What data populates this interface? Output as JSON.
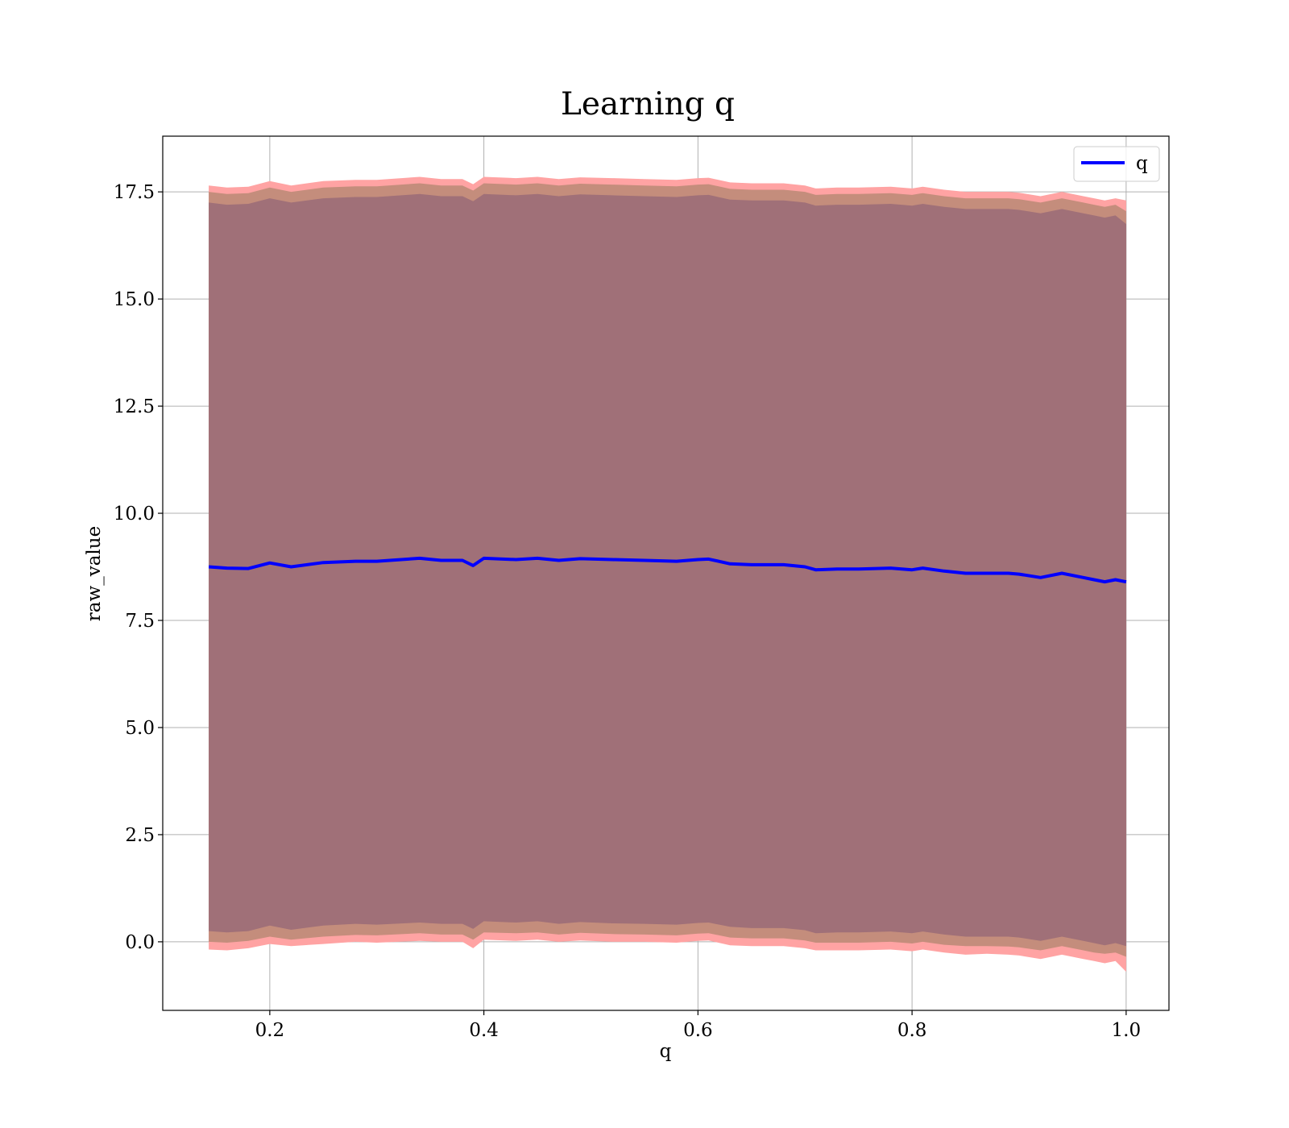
{
  "chart_data": {
    "type": "area",
    "title": "Learning q",
    "xlabel": "q",
    "ylabel": "raw_value",
    "xlim": [
      0.1,
      1.04
    ],
    "ylim": [
      -1.6,
      18.8
    ],
    "x_ticks": [
      0.2,
      0.4,
      0.6,
      0.8,
      1.0
    ],
    "x_tick_labels": [
      "0.2",
      "0.4",
      "0.6",
      "0.8",
      "1.0"
    ],
    "y_ticks": [
      0.0,
      2.5,
      5.0,
      7.5,
      10.0,
      12.5,
      15.0,
      17.5
    ],
    "y_tick_labels": [
      "0.0",
      "2.5",
      "5.0",
      "7.5",
      "10.0",
      "12.5",
      "15.0",
      "17.5"
    ],
    "grid": true,
    "legend": {
      "position": "top-right",
      "entries": [
        "q"
      ]
    },
    "colors": {
      "line": "#0000ff",
      "outer_band": "#ffa3a3",
      "middle_band": "#c48d7c",
      "inner_band": "#a07078"
    },
    "x": [
      0.143,
      0.16,
      0.18,
      0.2,
      0.22,
      0.25,
      0.28,
      0.3,
      0.34,
      0.36,
      0.38,
      0.39,
      0.4,
      0.43,
      0.45,
      0.47,
      0.49,
      0.52,
      0.55,
      0.58,
      0.6,
      0.61,
      0.63,
      0.65,
      0.68,
      0.7,
      0.71,
      0.73,
      0.75,
      0.78,
      0.8,
      0.81,
      0.83,
      0.85,
      0.87,
      0.89,
      0.9,
      0.92,
      0.94,
      0.96,
      0.97,
      0.98,
      0.99,
      1.0
    ],
    "series": [
      {
        "name": "q",
        "values": [
          8.75,
          8.72,
          8.71,
          8.84,
          8.75,
          8.85,
          8.88,
          8.88,
          8.95,
          8.9,
          8.9,
          8.78,
          8.95,
          8.92,
          8.95,
          8.9,
          8.94,
          8.92,
          8.9,
          8.88,
          8.92,
          8.93,
          8.82,
          8.8,
          8.8,
          8.75,
          8.68,
          8.7,
          8.7,
          8.72,
          8.68,
          8.72,
          8.65,
          8.6,
          8.6,
          8.6,
          8.58,
          8.5,
          8.6,
          8.5,
          8.45,
          8.4,
          8.45,
          8.4
        ]
      }
    ],
    "bands": [
      {
        "lower": [
          -0.18,
          -0.2,
          -0.15,
          -0.05,
          -0.1,
          -0.05,
          0.0,
          -0.02,
          0.02,
          0.0,
          0.0,
          -0.15,
          0.05,
          0.02,
          0.05,
          0.0,
          0.03,
          0.0,
          0.0,
          -0.02,
          0.02,
          0.03,
          -0.08,
          -0.1,
          -0.1,
          -0.15,
          -0.2,
          -0.2,
          -0.2,
          -0.18,
          -0.22,
          -0.18,
          -0.25,
          -0.3,
          -0.28,
          -0.3,
          -0.32,
          -0.4,
          -0.3,
          -0.4,
          -0.45,
          -0.5,
          -0.45,
          -0.7
        ],
        "upper": [
          17.65,
          17.6,
          17.62,
          17.75,
          17.65,
          17.75,
          17.78,
          17.78,
          17.85,
          17.8,
          17.8,
          17.68,
          17.85,
          17.82,
          17.85,
          17.8,
          17.84,
          17.82,
          17.8,
          17.78,
          17.82,
          17.83,
          17.72,
          17.7,
          17.7,
          17.65,
          17.58,
          17.6,
          17.6,
          17.62,
          17.58,
          17.62,
          17.55,
          17.5,
          17.5,
          17.5,
          17.48,
          17.4,
          17.5,
          17.4,
          17.35,
          17.3,
          17.35,
          17.3
        ]
      },
      {
        "lower": [
          0.0,
          -0.02,
          0.02,
          0.12,
          0.05,
          0.12,
          0.16,
          0.15,
          0.2,
          0.17,
          0.17,
          0.05,
          0.22,
          0.2,
          0.22,
          0.17,
          0.21,
          0.18,
          0.17,
          0.15,
          0.19,
          0.2,
          0.1,
          0.08,
          0.08,
          0.03,
          -0.02,
          -0.02,
          -0.02,
          0.0,
          -0.04,
          0.0,
          -0.07,
          -0.1,
          -0.1,
          -0.11,
          -0.13,
          -0.2,
          -0.1,
          -0.2,
          -0.25,
          -0.28,
          -0.25,
          -0.35
        ],
        "upper": [
          17.5,
          17.45,
          17.47,
          17.6,
          17.5,
          17.6,
          17.63,
          17.63,
          17.7,
          17.65,
          17.65,
          17.53,
          17.7,
          17.67,
          17.7,
          17.65,
          17.69,
          17.67,
          17.65,
          17.63,
          17.67,
          17.68,
          17.57,
          17.55,
          17.55,
          17.5,
          17.43,
          17.45,
          17.45,
          17.47,
          17.43,
          17.47,
          17.4,
          17.35,
          17.35,
          17.35,
          17.33,
          17.25,
          17.35,
          17.25,
          17.2,
          17.15,
          17.2,
          17.05
        ]
      },
      {
        "lower": [
          0.25,
          0.22,
          0.25,
          0.38,
          0.28,
          0.38,
          0.42,
          0.4,
          0.45,
          0.42,
          0.42,
          0.3,
          0.48,
          0.45,
          0.48,
          0.42,
          0.46,
          0.43,
          0.42,
          0.4,
          0.44,
          0.45,
          0.35,
          0.32,
          0.32,
          0.27,
          0.2,
          0.22,
          0.22,
          0.24,
          0.2,
          0.24,
          0.17,
          0.12,
          0.12,
          0.12,
          0.1,
          0.02,
          0.12,
          0.02,
          -0.03,
          -0.08,
          -0.03,
          -0.1
        ],
        "upper": [
          17.25,
          17.2,
          17.22,
          17.35,
          17.25,
          17.35,
          17.38,
          17.38,
          17.45,
          17.4,
          17.4,
          17.28,
          17.45,
          17.42,
          17.45,
          17.4,
          17.44,
          17.42,
          17.4,
          17.38,
          17.42,
          17.43,
          17.32,
          17.3,
          17.3,
          17.25,
          17.18,
          17.2,
          17.2,
          17.22,
          17.18,
          17.22,
          17.15,
          17.1,
          17.1,
          17.1,
          17.08,
          17.0,
          17.1,
          17.0,
          16.95,
          16.9,
          16.95,
          16.75
        ]
      }
    ]
  }
}
